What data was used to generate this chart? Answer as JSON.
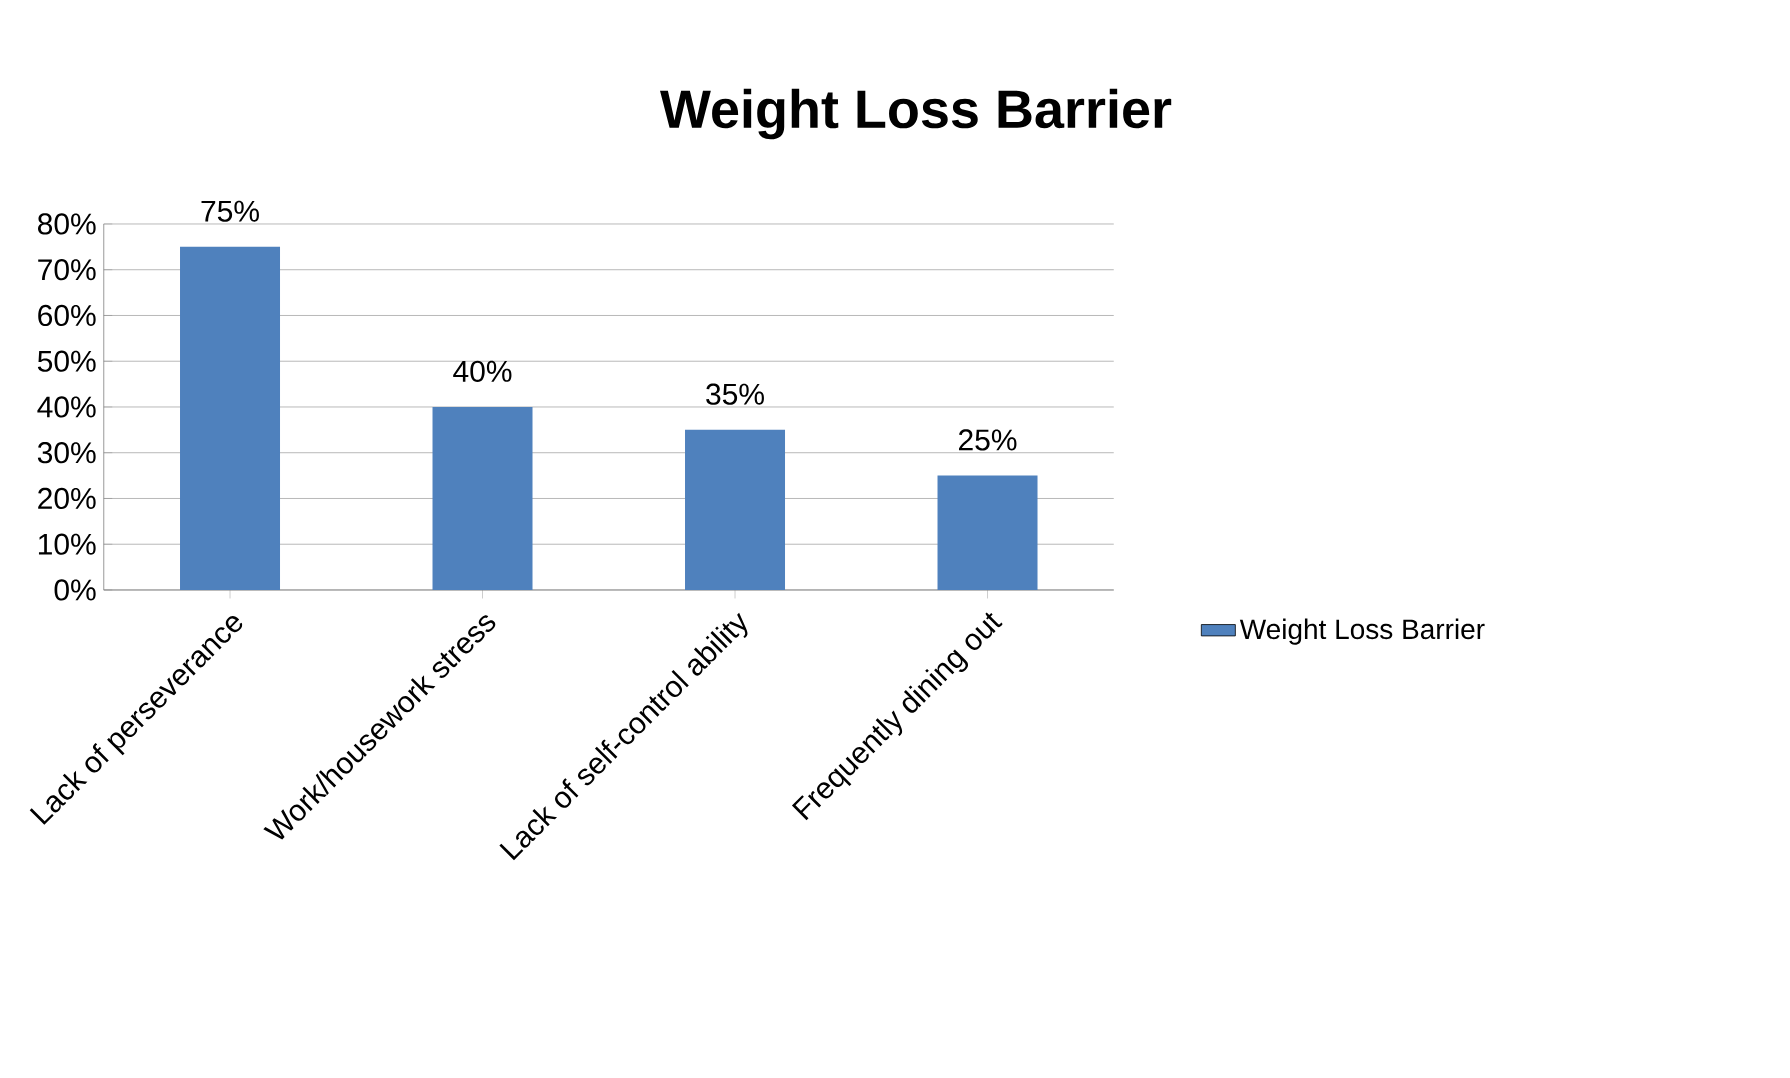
{
  "chart_data": {
    "type": "bar",
    "title": "Weight Loss Barrier",
    "categories": [
      "Lack of perseverance",
      "Work/housework stress",
      "Lack of self-control ability",
      "Frequently dining out"
    ],
    "series": [
      {
        "name": "Weight Loss Barrier",
        "color": "#4f81bd",
        "values": [
          75,
          40,
          35,
          25
        ],
        "value_labels": [
          "75%",
          "40%",
          "35%",
          "25%"
        ]
      }
    ],
    "ylim": [
      0,
      80
    ],
    "yticks": [
      {
        "value": 0,
        "label": "0%"
      },
      {
        "value": 10,
        "label": "10%"
      },
      {
        "value": 20,
        "label": "20%"
      },
      {
        "value": 30,
        "label": "30%"
      },
      {
        "value": 40,
        "label": "40%"
      },
      {
        "value": 50,
        "label": "50%"
      },
      {
        "value": 60,
        "label": "60%"
      },
      {
        "value": 70,
        "label": "70%"
      },
      {
        "value": 80,
        "label": "80%"
      }
    ],
    "grid": "y",
    "legend": "right"
  }
}
